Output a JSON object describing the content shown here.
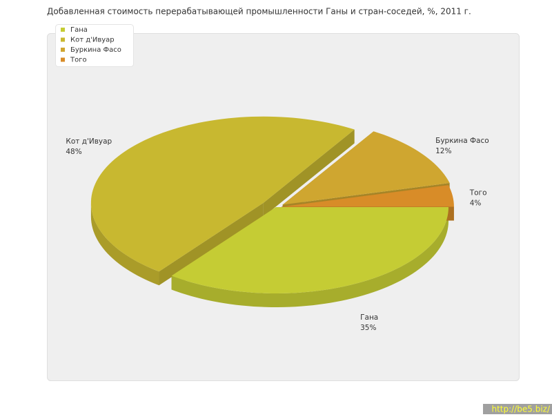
{
  "chart_data": {
    "type": "pie",
    "title": "Добавленная стоимость перерабатывающей промышленности Ганы и стран-соседей, %, 2011 г.",
    "categories": [
      "Гана",
      "Кот д'Ивуар",
      "Буркина Фасо",
      "Того"
    ],
    "values": [
      35,
      48,
      12,
      4
    ],
    "value_labels": [
      "35%",
      "48%",
      "12%",
      "4%"
    ],
    "colors": [
      "#c5cc34",
      "#c8b830",
      "#cfa630",
      "#d88c28"
    ],
    "legend": "top-left"
  },
  "watermark": "http://be5.biz/"
}
